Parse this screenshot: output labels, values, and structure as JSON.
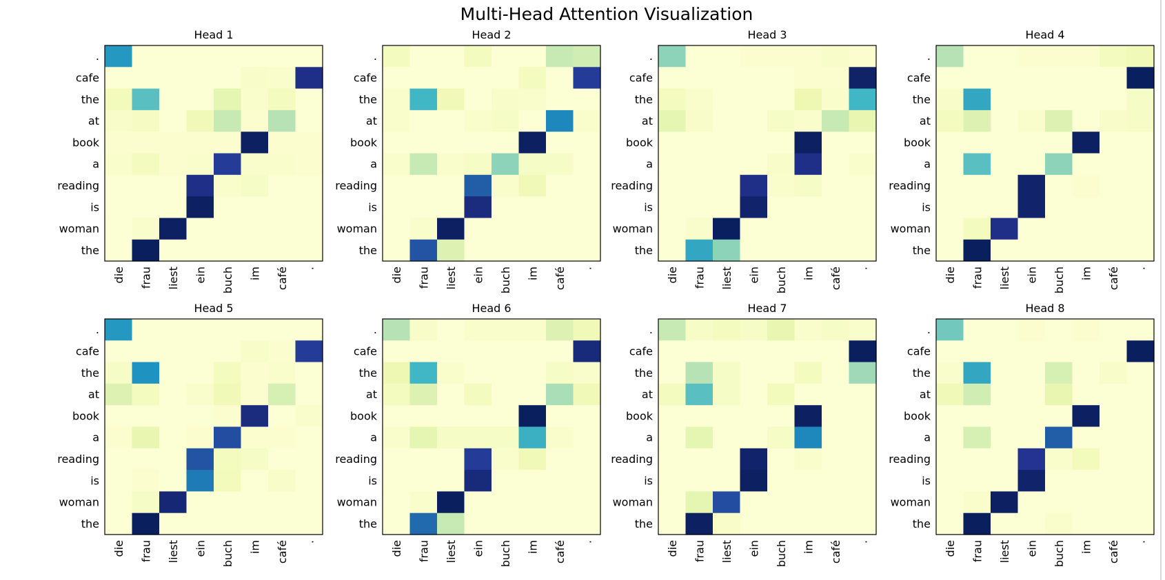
{
  "chart_data": {
    "type": "heatmap",
    "title": "Multi-Head Attention Visualization",
    "colormap": "YlGnBu",
    "value_range": [
      0,
      1
    ],
    "x_labels": [
      "die",
      "frau",
      "liest",
      "ein",
      "buch",
      "im",
      "café",
      "."
    ],
    "y_labels": [
      ".",
      "cafe",
      "the",
      "at",
      "book",
      "a",
      "reading",
      "is",
      "woman",
      "the"
    ],
    "panels": [
      {
        "title": "Head 1",
        "values": [
          [
            0.6,
            0.02,
            0.02,
            0.02,
            0.02,
            0.02,
            0.02,
            0.02
          ],
          [
            0.02,
            0.02,
            0.02,
            0.02,
            0.02,
            0.05,
            0.04,
            0.9
          ],
          [
            0.09,
            0.45,
            0.02,
            0.02,
            0.15,
            0.04,
            0.08,
            0.02
          ],
          [
            0.05,
            0.07,
            0.02,
            0.1,
            0.25,
            0.03,
            0.28,
            0.02
          ],
          [
            0.03,
            0.03,
            0.03,
            0.03,
            0.03,
            0.98,
            0.03,
            0.03
          ],
          [
            0.04,
            0.08,
            0.03,
            0.04,
            0.85,
            0.04,
            0.04,
            0.03
          ],
          [
            0.02,
            0.02,
            0.02,
            0.9,
            0.04,
            0.06,
            0.02,
            0.02
          ],
          [
            0.02,
            0.02,
            0.02,
            0.98,
            0.02,
            0.02,
            0.02,
            0.02
          ],
          [
            0.02,
            0.04,
            0.98,
            0.02,
            0.02,
            0.02,
            0.02,
            0.02
          ],
          [
            0.02,
            0.99,
            0.02,
            0.02,
            0.02,
            0.02,
            0.02,
            0.02
          ]
        ]
      },
      {
        "title": "Head 2",
        "values": [
          [
            0.08,
            0.02,
            0.02,
            0.08,
            0.02,
            0.02,
            0.25,
            0.22
          ],
          [
            0.02,
            0.02,
            0.02,
            0.02,
            0.02,
            0.08,
            0.02,
            0.85
          ],
          [
            0.04,
            0.5,
            0.1,
            0.02,
            0.05,
            0.04,
            0.02,
            0.02
          ],
          [
            0.04,
            0.02,
            0.02,
            0.04,
            0.06,
            0.02,
            0.65,
            0.04
          ],
          [
            0.02,
            0.02,
            0.02,
            0.02,
            0.02,
            0.98,
            0.02,
            0.02
          ],
          [
            0.04,
            0.25,
            0.04,
            0.06,
            0.35,
            0.06,
            0.06,
            0.02
          ],
          [
            0.02,
            0.02,
            0.02,
            0.75,
            0.04,
            0.1,
            0.02,
            0.02
          ],
          [
            0.02,
            0.02,
            0.02,
            0.92,
            0.02,
            0.02,
            0.02,
            0.02
          ],
          [
            0.02,
            0.04,
            0.98,
            0.02,
            0.02,
            0.02,
            0.02,
            0.02
          ],
          [
            0.02,
            0.78,
            0.18,
            0.02,
            0.02,
            0.02,
            0.02,
            0.02
          ]
        ]
      },
      {
        "title": "Head 3",
        "values": [
          [
            0.35,
            0.02,
            0.02,
            0.03,
            0.03,
            0.03,
            0.05,
            0.03
          ],
          [
            0.02,
            0.02,
            0.02,
            0.02,
            0.02,
            0.03,
            0.03,
            0.97
          ],
          [
            0.08,
            0.04,
            0.02,
            0.02,
            0.02,
            0.12,
            0.04,
            0.5
          ],
          [
            0.15,
            0.05,
            0.02,
            0.02,
            0.06,
            0.04,
            0.25,
            0.14
          ],
          [
            0.02,
            0.02,
            0.02,
            0.02,
            0.02,
            0.98,
            0.02,
            0.02
          ],
          [
            0.02,
            0.02,
            0.02,
            0.02,
            0.05,
            0.9,
            0.02,
            0.04
          ],
          [
            0.02,
            0.02,
            0.02,
            0.9,
            0.04,
            0.06,
            0.02,
            0.02
          ],
          [
            0.02,
            0.02,
            0.02,
            0.96,
            0.02,
            0.02,
            0.02,
            0.02
          ],
          [
            0.02,
            0.04,
            0.99,
            0.02,
            0.02,
            0.02,
            0.02,
            0.02
          ],
          [
            0.02,
            0.55,
            0.35,
            0.02,
            0.02,
            0.02,
            0.02,
            0.02
          ]
        ]
      },
      {
        "title": "Head 4",
        "values": [
          [
            0.28,
            0.02,
            0.02,
            0.03,
            0.03,
            0.03,
            0.08,
            0.1
          ],
          [
            0.02,
            0.02,
            0.02,
            0.02,
            0.02,
            0.02,
            0.02,
            0.99
          ],
          [
            0.05,
            0.55,
            0.02,
            0.02,
            0.02,
            0.02,
            0.02,
            0.06
          ],
          [
            0.08,
            0.18,
            0.02,
            0.04,
            0.18,
            0.02,
            0.05,
            0.06
          ],
          [
            0.02,
            0.02,
            0.02,
            0.02,
            0.02,
            0.98,
            0.02,
            0.02
          ],
          [
            0.02,
            0.45,
            0.02,
            0.02,
            0.35,
            0.02,
            0.02,
            0.02
          ],
          [
            0.02,
            0.02,
            0.02,
            0.96,
            0.02,
            0.03,
            0.02,
            0.02
          ],
          [
            0.02,
            0.02,
            0.02,
            0.96,
            0.02,
            0.02,
            0.02,
            0.02
          ],
          [
            0.02,
            0.08,
            0.9,
            0.02,
            0.02,
            0.02,
            0.02,
            0.02
          ],
          [
            0.02,
            0.99,
            0.02,
            0.02,
            0.02,
            0.02,
            0.02,
            0.02
          ]
        ]
      },
      {
        "title": "Head 5",
        "values": [
          [
            0.6,
            0.02,
            0.02,
            0.02,
            0.02,
            0.02,
            0.02,
            0.02
          ],
          [
            0.02,
            0.02,
            0.02,
            0.02,
            0.02,
            0.05,
            0.03,
            0.85
          ],
          [
            0.06,
            0.62,
            0.02,
            0.02,
            0.08,
            0.03,
            0.04,
            0.02
          ],
          [
            0.18,
            0.08,
            0.02,
            0.04,
            0.1,
            0.03,
            0.2,
            0.02
          ],
          [
            0.02,
            0.02,
            0.02,
            0.02,
            0.03,
            0.92,
            0.02,
            0.04
          ],
          [
            0.03,
            0.14,
            0.02,
            0.03,
            0.8,
            0.03,
            0.03,
            0.02
          ],
          [
            0.02,
            0.02,
            0.02,
            0.78,
            0.08,
            0.06,
            0.02,
            0.02
          ],
          [
            0.02,
            0.03,
            0.02,
            0.68,
            0.09,
            0.02,
            0.05,
            0.02
          ],
          [
            0.02,
            0.06,
            0.94,
            0.02,
            0.02,
            0.02,
            0.02,
            0.02
          ],
          [
            0.02,
            0.99,
            0.02,
            0.02,
            0.02,
            0.02,
            0.02,
            0.02
          ]
        ]
      },
      {
        "title": "Head 6",
        "values": [
          [
            0.28,
            0.05,
            0.02,
            0.04,
            0.04,
            0.04,
            0.18,
            0.1
          ],
          [
            0.02,
            0.02,
            0.02,
            0.02,
            0.02,
            0.02,
            0.02,
            0.93
          ],
          [
            0.12,
            0.5,
            0.04,
            0.02,
            0.02,
            0.02,
            0.06,
            0.04
          ],
          [
            0.08,
            0.18,
            0.02,
            0.08,
            0.02,
            0.02,
            0.3,
            0.1
          ],
          [
            0.02,
            0.02,
            0.02,
            0.02,
            0.02,
            0.99,
            0.02,
            0.02
          ],
          [
            0.04,
            0.15,
            0.06,
            0.06,
            0.06,
            0.52,
            0.04,
            0.02
          ],
          [
            0.02,
            0.02,
            0.02,
            0.85,
            0.04,
            0.1,
            0.02,
            0.02
          ],
          [
            0.02,
            0.02,
            0.02,
            0.93,
            0.02,
            0.02,
            0.02,
            0.02
          ],
          [
            0.02,
            0.04,
            0.99,
            0.02,
            0.02,
            0.02,
            0.02,
            0.02
          ],
          [
            0.02,
            0.72,
            0.25,
            0.02,
            0.02,
            0.02,
            0.02,
            0.02
          ]
        ]
      },
      {
        "title": "Head 7",
        "values": [
          [
            0.25,
            0.06,
            0.08,
            0.06,
            0.14,
            0.04,
            0.06,
            0.04
          ],
          [
            0.02,
            0.02,
            0.02,
            0.02,
            0.02,
            0.02,
            0.02,
            0.99
          ],
          [
            0.02,
            0.28,
            0.06,
            0.02,
            0.02,
            0.08,
            0.02,
            0.32
          ],
          [
            0.08,
            0.45,
            0.06,
            0.02,
            0.09,
            0.02,
            0.02,
            0.02
          ],
          [
            0.02,
            0.02,
            0.02,
            0.02,
            0.02,
            0.98,
            0.02,
            0.02
          ],
          [
            0.02,
            0.15,
            0.02,
            0.02,
            0.06,
            0.65,
            0.02,
            0.02
          ],
          [
            0.02,
            0.02,
            0.02,
            0.96,
            0.02,
            0.04,
            0.02,
            0.02
          ],
          [
            0.02,
            0.02,
            0.02,
            0.98,
            0.02,
            0.02,
            0.02,
            0.02
          ],
          [
            0.02,
            0.15,
            0.8,
            0.02,
            0.02,
            0.02,
            0.02,
            0.02
          ],
          [
            0.02,
            0.98,
            0.05,
            0.02,
            0.02,
            0.02,
            0.02,
            0.02
          ]
        ]
      },
      {
        "title": "Head 8",
        "values": [
          [
            0.4,
            0.02,
            0.02,
            0.03,
            0.02,
            0.03,
            0.02,
            0.02
          ],
          [
            0.02,
            0.02,
            0.02,
            0.02,
            0.02,
            0.02,
            0.02,
            0.99
          ],
          [
            0.04,
            0.55,
            0.02,
            0.02,
            0.2,
            0.02,
            0.05,
            0.02
          ],
          [
            0.1,
            0.22,
            0.02,
            0.02,
            0.14,
            0.02,
            0.02,
            0.02
          ],
          [
            0.02,
            0.02,
            0.02,
            0.02,
            0.02,
            0.98,
            0.02,
            0.02
          ],
          [
            0.02,
            0.2,
            0.02,
            0.02,
            0.75,
            0.02,
            0.02,
            0.02
          ],
          [
            0.02,
            0.02,
            0.02,
            0.88,
            0.04,
            0.09,
            0.02,
            0.02
          ],
          [
            0.02,
            0.02,
            0.02,
            0.96,
            0.02,
            0.02,
            0.02,
            0.02
          ],
          [
            0.02,
            0.04,
            0.98,
            0.02,
            0.02,
            0.02,
            0.02,
            0.02
          ],
          [
            0.02,
            0.99,
            0.02,
            0.02,
            0.04,
            0.02,
            0.02,
            0.02
          ]
        ]
      }
    ]
  }
}
